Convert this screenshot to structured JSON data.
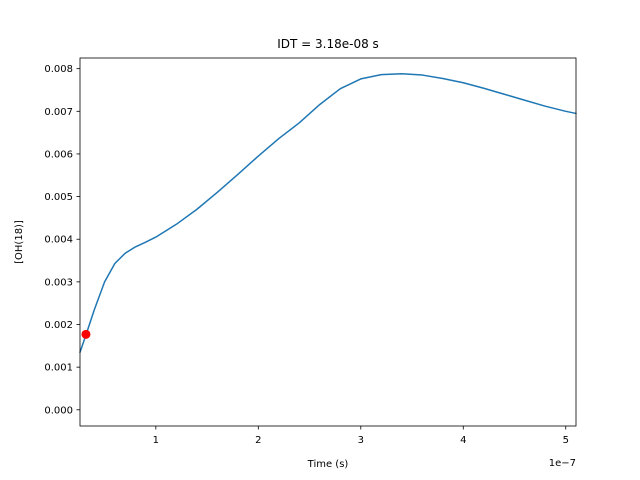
{
  "chart_data": {
    "type": "line",
    "title": "IDT = 3.18e-08 s",
    "xlabel": "Time (s)",
    "ylabel": "[OH(18)]",
    "x_offset_text": "1e−7",
    "xlim": [
      2.6e-08,
      5.1e-07
    ],
    "ylim": [
      -0.00038,
      0.00825
    ],
    "x_ticks": [
      1e-07,
      2e-07,
      3e-07,
      4e-07,
      5e-07
    ],
    "x_tick_labels": [
      "1",
      "2",
      "3",
      "4",
      "5"
    ],
    "y_ticks": [
      0.0,
      0.001,
      0.002,
      0.003,
      0.004,
      0.005,
      0.006,
      0.007,
      0.008
    ],
    "y_tick_labels": [
      "0.000",
      "0.001",
      "0.002",
      "0.003",
      "0.004",
      "0.005",
      "0.006",
      "0.007",
      "0.008"
    ],
    "grid": false,
    "series": [
      {
        "color": "#1f77b4",
        "x": [
          2.6e-08,
          3.2e-08,
          4e-08,
          5e-08,
          6e-08,
          7e-08,
          8e-08,
          9e-08,
          1e-07,
          1.2e-07,
          1.4e-07,
          1.6e-07,
          1.8e-07,
          2e-07,
          2.2e-07,
          2.4e-07,
          2.6e-07,
          2.8e-07,
          3e-07,
          3.2e-07,
          3.4e-07,
          3.6e-07,
          3.8e-07,
          4e-07,
          4.2e-07,
          4.4e-07,
          4.6e-07,
          4.8e-07,
          5e-07,
          5.1e-07
        ],
        "y": [
          0.00135,
          0.00177,
          0.00235,
          0.003,
          0.00343,
          0.00367,
          0.00382,
          0.00393,
          0.00405,
          0.00435,
          0.0047,
          0.0051,
          0.00552,
          0.00595,
          0.00636,
          0.00673,
          0.00716,
          0.00753,
          0.00776,
          0.00786,
          0.00788,
          0.00785,
          0.00777,
          0.00767,
          0.00754,
          0.0074,
          0.00726,
          0.00712,
          0.007,
          0.00695
        ]
      }
    ],
    "marker": {
      "x": 3.18e-08,
      "y": 0.00177,
      "color": "#ff0000"
    }
  }
}
